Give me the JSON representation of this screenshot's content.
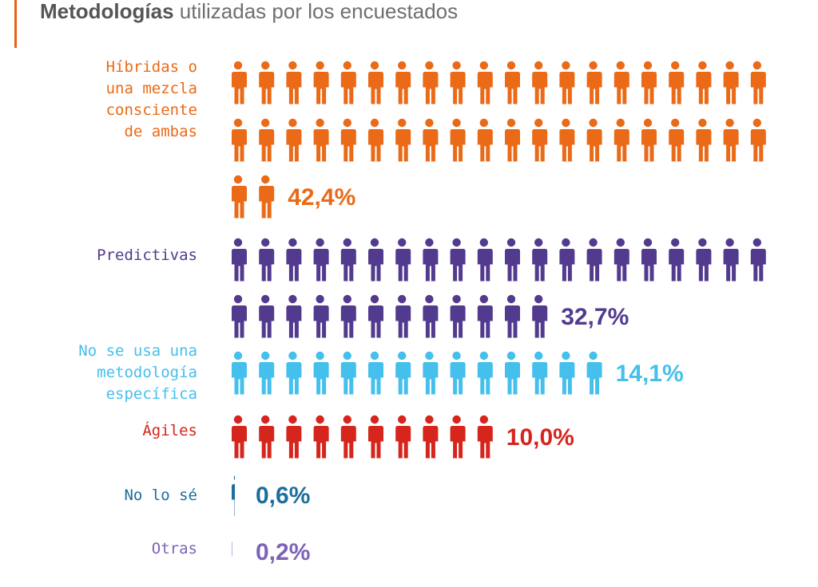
{
  "title": {
    "bold": "Metodologías",
    "rest": " utilizadas por los encuestados"
  },
  "chart_data": {
    "type": "bar",
    "title": "Metodologías utilizadas por los encuestados",
    "unit": "%",
    "categories": [
      {
        "label_lines": [
          "Híbridas o",
          "una mezcla",
          "consciente",
          "de ambas"
        ],
        "value": 42.4,
        "display": "42,4%",
        "icons": 42,
        "color": "#ea6a17"
      },
      {
        "label_lines": [
          "Predictivas"
        ],
        "value": 32.7,
        "display": "32,7%",
        "icons": 32,
        "color": "#523a8e"
      },
      {
        "label_lines": [
          "No se usa una",
          "metodología",
          "específica"
        ],
        "value": 14.1,
        "display": "14,1%",
        "icons": 14,
        "color": "#45bfec"
      },
      {
        "label_lines": [
          "Ágiles"
        ],
        "value": 10.0,
        "display": "10,0%",
        "icons": 10,
        "color": "#d6251d"
      },
      {
        "label_lines": [
          "No lo sé"
        ],
        "value": 0.6,
        "display": "0,6%",
        "icons": 0.6,
        "color": "#1c6f9c"
      },
      {
        "label_lines": [
          "Otras"
        ],
        "value": 0.2,
        "display": "0,2%",
        "icons": 0.2,
        "color": "#7d63b8"
      }
    ]
  }
}
